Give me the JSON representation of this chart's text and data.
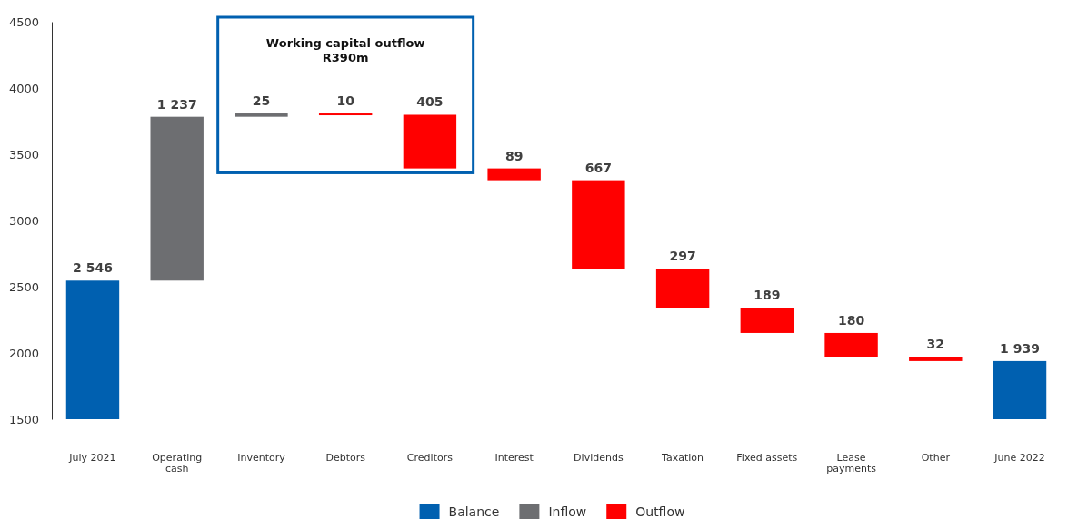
{
  "chart_data": {
    "type": "bar",
    "categories": [
      "July 2021",
      "Operating cash",
      "Inventory",
      "Debtors",
      "Creditors",
      "Interest",
      "Dividends",
      "Taxation",
      "Fixed assets",
      "Lease payments",
      "Other",
      "June 2022"
    ],
    "series": [
      {
        "name": "Balance",
        "color": "#0060b0",
        "values": [
          2546,
          null,
          null,
          null,
          null,
          null,
          null,
          null,
          null,
          null,
          null,
          1939
        ],
        "base": [
          null,
          null,
          null,
          null,
          null,
          null,
          null,
          null,
          null,
          null,
          null,
          null
        ],
        "value_labels": [
          "2 546",
          null,
          null,
          null,
          null,
          null,
          null,
          null,
          null,
          null,
          null,
          "1 939"
        ]
      },
      {
        "name": "Inflow",
        "color": "#6d6e71",
        "values": [
          null,
          1237,
          25,
          null,
          null,
          null,
          null,
          null,
          null,
          null,
          null,
          null
        ],
        "base": [
          null,
          2546,
          3783,
          null,
          null,
          null,
          null,
          null,
          null,
          null,
          null,
          null
        ],
        "value_labels": [
          null,
          "1 237",
          "25",
          null,
          null,
          null,
          null,
          null,
          null,
          null,
          null,
          null
        ]
      },
      {
        "name": "Outflow",
        "color": "#ff0000",
        "values": [
          null,
          null,
          null,
          -10,
          -405,
          -89,
          -667,
          -297,
          -189,
          -180,
          -32,
          null
        ],
        "base": [
          null,
          null,
          null,
          3808,
          3798,
          3393,
          3304,
          2637,
          2340,
          2151,
          1971,
          null
        ],
        "value_labels": [
          null,
          null,
          null,
          "10",
          "405",
          "89",
          "667",
          "297",
          "189",
          "180",
          "32",
          null
        ]
      }
    ],
    "ylim": [
      1500,
      4500
    ],
    "yticks": [
      1500,
      2000,
      2500,
      3000,
      3500,
      4000,
      4500
    ],
    "grid": false,
    "legend": "bottom",
    "annotations": [
      "Working capital outflow\nR390m"
    ]
  }
}
